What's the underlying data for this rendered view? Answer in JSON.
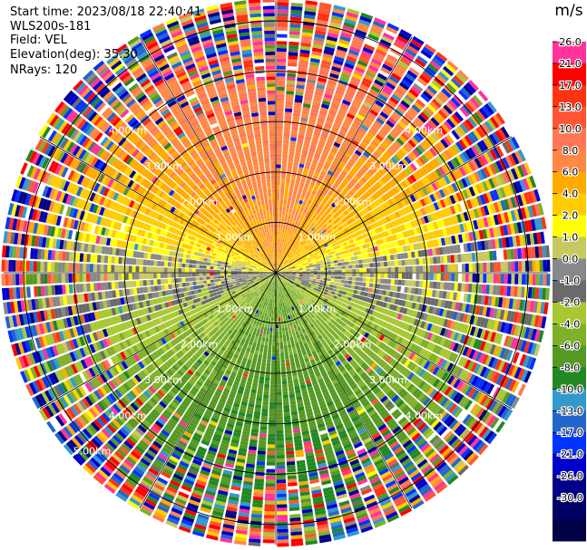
{
  "header": {
    "start_time": "Start time: 2023/08/18 22:40:41",
    "instrument": "WLS200s-181",
    "field": "Field: VEL",
    "elevation": "Elevation(deg): 35.30",
    "nrays": "NRays: 120"
  },
  "chart_data": {
    "type": "ppi-polar-heatmap",
    "field": "VEL",
    "units": "m/s",
    "nrays": 120,
    "elevation_deg": 35.3,
    "range_rings_km": [
      1.0,
      2.0,
      3.0,
      4.0,
      5.0
    ],
    "ring_labels": [
      "1.00km",
      "2.00km",
      "3.00km",
      "4.00km",
      "5.00km"
    ],
    "max_range_km": 5.4,
    "spokes_deg": [
      0,
      30,
      60,
      90,
      120,
      150,
      180,
      210,
      240,
      270,
      300,
      330
    ],
    "colorbar": {
      "title": "m/s",
      "ticks": [
        "26.0",
        "21.0",
        "17.0",
        "13.0",
        "10.0",
        "8.0",
        "6.0",
        "4.0",
        "2.0",
        "1.0",
        "0.0",
        "-1.0",
        "-2.0",
        "-4.0",
        "-6.0",
        "-8.0",
        "-10.0",
        "-13.0",
        "-17.0",
        "-21.0",
        "-26.0",
        "-30.0"
      ],
      "colors": [
        "#ffffff",
        "#ff3399",
        "#ff0000",
        "#ff3311",
        "#ff5533",
        "#ff7755",
        "#ff8844",
        "#ffaa00",
        "#ffcc00",
        "#ffff00",
        "#c8c860",
        "#888888",
        "#6a6a6a",
        "#a8c832",
        "#7fb02a",
        "#559922",
        "#228822",
        "#3399cc",
        "#2266cc",
        "#0033ff",
        "#0000cc",
        "#000088",
        "#000066",
        "#000044"
      ]
    },
    "velocity_pattern": {
      "north_half": "positive (toward yellow / orange / red)",
      "south_half": "negative (green / blue)",
      "east_west_axis": "near zero (gray)",
      "outer_ranges": "noisy, all colors"
    }
  }
}
